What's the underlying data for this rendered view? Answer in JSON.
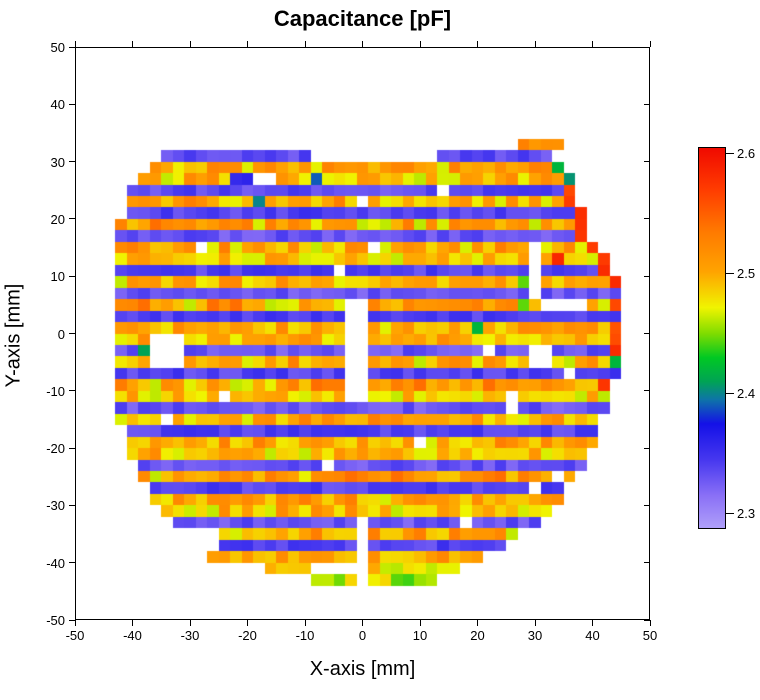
{
  "title": "Capacitance [pF]",
  "axes": {
    "x_label": "X-axis [mm]",
    "y_label": "Y-axis [mm]",
    "x_range": [
      -50,
      50
    ],
    "y_range": [
      -50,
      50
    ],
    "x_ticks": [
      -50,
      -40,
      -30,
      -20,
      -10,
      0,
      10,
      20,
      30,
      40,
      50
    ],
    "y_ticks": [
      -50,
      -40,
      -30,
      -20,
      -10,
      0,
      10,
      20,
      30,
      40,
      50
    ]
  },
  "colorbar": {
    "min": 2.288,
    "max": 2.605,
    "ticks": [
      {
        "value": 2.6,
        "label": "2.6"
      },
      {
        "value": 2.5,
        "label": "2.5"
      },
      {
        "value": 2.4,
        "label": "2.4"
      },
      {
        "value": 2.3,
        "label": "2.3"
      }
    ]
  },
  "chart_data": {
    "type": "heatmap",
    "title": "Capacitance [pF]",
    "xlabel": "X-axis [mm]",
    "ylabel": "Y-axis [mm]",
    "value_unit": "pF",
    "cell_size_mm": 2,
    "xlim": [
      -50,
      50
    ],
    "ylim": [
      -50,
      50
    ],
    "value_range": [
      2.288,
      2.605
    ],
    "legend_position": "right-colorbar",
    "grid": false,
    "colormap": {
      "stops": [
        [
          2.288,
          "#AF9FF9"
        ],
        [
          2.315,
          "#8A70F6"
        ],
        [
          2.345,
          "#4637EF"
        ],
        [
          2.375,
          "#1411E7"
        ],
        [
          2.395,
          "#0E74A8"
        ],
        [
          2.41,
          "#00A355"
        ],
        [
          2.43,
          "#00C823"
        ],
        [
          2.45,
          "#7EDC00"
        ],
        [
          2.472,
          "#F0F400"
        ],
        [
          2.502,
          "#FFA300"
        ],
        [
          2.535,
          "#FF7A00"
        ],
        [
          2.57,
          "#FF3C00"
        ],
        [
          2.605,
          "#F00A00"
        ]
      ]
    },
    "noise": {
      "seed": 1337,
      "orange_amp": 0.05,
      "blue_amp": 0.026,
      "yellow_flash_value": 2.468
    },
    "rows": [
      {
        "y": 33,
        "x0": 28,
        "x1": 34,
        "base": 2.52
      },
      {
        "y": 31,
        "x0": -34,
        "x1": 32,
        "base": 2.335
      },
      {
        "y": 29,
        "x0": -36,
        "x1": 34,
        "base": 2.51
      },
      {
        "y": 27,
        "x0": -38,
        "x1": 36,
        "base": 2.49
      },
      {
        "y": 25,
        "x0": -40,
        "x1": 36,
        "base": 2.335,
        "edge_red": true
      },
      {
        "y": 23,
        "x0": -40,
        "x1": 36,
        "base": 2.5,
        "edge_red": true
      },
      {
        "y": 21,
        "x0": -40,
        "x1": 38,
        "base": 2.34,
        "edge_red": true
      },
      {
        "y": 19,
        "x0": -42,
        "x1": 38,
        "base": 2.51,
        "edge_red": true
      },
      {
        "y": 17,
        "x0": -42,
        "x1": 38,
        "base": 2.33,
        "edge_red": true
      },
      {
        "y": 15,
        "x0": -42,
        "x1": 40,
        "base": 2.5,
        "edge_red": true
      },
      {
        "y": 13,
        "x0": -42,
        "x1": 42,
        "base": 2.49,
        "edge_red": true
      },
      {
        "y": 11,
        "x0": -42,
        "x1": 42,
        "base": 2.34,
        "edge_red": true
      },
      {
        "y": 9,
        "x0": -42,
        "x1": 44,
        "base": 2.5,
        "edge_red": true
      },
      {
        "y": 7,
        "x0": -42,
        "x1": 44,
        "base": 2.33
      },
      {
        "y": 5,
        "x0": -42,
        "x1": 44,
        "base": 2.51,
        "edge_red": true
      },
      {
        "y": 3,
        "x0": -42,
        "x1": 44,
        "base": 2.34
      },
      {
        "y": 1,
        "x0": -42,
        "x1": 44,
        "base": 2.5,
        "edge_red": true
      },
      {
        "y": -1,
        "x0": -42,
        "x1": 44,
        "base": 2.49,
        "edge_red": true
      },
      {
        "y": -3,
        "x0": -42,
        "x1": 44,
        "base": 2.33,
        "edge_red": true
      },
      {
        "y": -5,
        "x0": -42,
        "x1": 44,
        "base": 2.5
      },
      {
        "y": -7,
        "x0": -42,
        "x1": 44,
        "base": 2.34
      },
      {
        "y": -9,
        "x0": -42,
        "x1": 42,
        "base": 2.51,
        "edge_red": true
      },
      {
        "y": -11,
        "x0": -42,
        "x1": 42,
        "base": 2.49
      },
      {
        "y": -13,
        "x0": -42,
        "x1": 42,
        "base": 2.33
      },
      {
        "y": -15,
        "x0": -42,
        "x1": 40,
        "base": 2.5
      },
      {
        "y": -17,
        "x0": -40,
        "x1": 40,
        "base": 2.34
      },
      {
        "y": -19,
        "x0": -40,
        "x1": 40,
        "base": 2.5
      },
      {
        "y": -21,
        "x0": -40,
        "x1": 38,
        "base": 2.49
      },
      {
        "y": -23,
        "x0": -38,
        "x1": 38,
        "base": 2.33
      },
      {
        "y": -25,
        "x0": -38,
        "x1": 36,
        "base": 2.51
      },
      {
        "y": -27,
        "x0": -36,
        "x1": 34,
        "base": 2.34
      },
      {
        "y": -29,
        "x0": -36,
        "x1": 34,
        "base": 2.5
      },
      {
        "y": -31,
        "x0": -34,
        "x1": 32,
        "base": 2.49
      },
      {
        "y": -33,
        "x0": -32,
        "x1": 30,
        "base": 2.33
      },
      {
        "y": -35,
        "x0": -30,
        "x1": 26,
        "base": 2.5
      },
      {
        "y": -37,
        "x0": -28,
        "x1": 24,
        "base": 2.34
      },
      {
        "y": -39,
        "x0": -26,
        "x1": 20,
        "base": 2.5
      },
      {
        "y": -41,
        "x0": -16,
        "x1": 16,
        "base": 2.48
      },
      {
        "y": -43,
        "x0": -8,
        "x1": 12,
        "base": 2.46
      }
    ],
    "gaps": [
      {
        "x0": -9.5,
        "x1": 13,
        "y0": 30,
        "y1": 32
      },
      {
        "x0": -37,
        "x1": -31,
        "y0": -6,
        "y1": 0
      },
      {
        "x0": -2.5,
        "x1": 1.5,
        "y0": -11,
        "y1": 5
      },
      {
        "x0": -1.5,
        "x1": 1.5,
        "y0": -44,
        "y1": -32
      },
      {
        "x0": 29,
        "x1": 33,
        "y0": -6,
        "y1": -2
      },
      {
        "x0": 29,
        "x1": 31.5,
        "y0": 6,
        "y1": 16
      },
      {
        "x0": 31,
        "x1": 39,
        "y0": 4,
        "y1": 6
      },
      {
        "x0": 25,
        "x1": 27.5,
        "y0": -14.5,
        "y1": -11
      },
      {
        "x0": -9,
        "x1": -1,
        "y0": -42,
        "y1": -40
      },
      {
        "x0": -31,
        "x1": -26,
        "y0": -38,
        "y1": -34
      }
    ],
    "missing_cells": [
      [
        -18,
        27
      ],
      [
        -16,
        27
      ],
      [
        14,
        25
      ],
      [
        0,
        23
      ],
      [
        2,
        15
      ],
      [
        -4,
        11
      ],
      [
        -28,
        15
      ],
      [
        22,
        -3
      ],
      [
        36,
        -7
      ],
      [
        -24,
        -11
      ],
      [
        -34,
        -15
      ],
      [
        10,
        -19
      ],
      [
        -6,
        -23
      ],
      [
        34,
        -25
      ],
      [
        30,
        -27
      ],
      [
        18,
        -33
      ]
    ],
    "anomalies": [
      {
        "x": -8,
        "y": 27,
        "value": 2.39
      },
      {
        "x": -22,
        "y": 27,
        "value": 2.355
      },
      {
        "x": -20,
        "y": 27,
        "value": 2.36
      },
      {
        "x": 34,
        "y": 29,
        "value": 2.42
      },
      {
        "x": 36,
        "y": 27,
        "value": 2.405
      },
      {
        "x": -18,
        "y": 23,
        "value": 2.4
      },
      {
        "x": 36,
        "y": 23,
        "value": 2.57
      },
      {
        "x": 38,
        "y": 21,
        "value": 2.58
      },
      {
        "x": 34,
        "y": 13,
        "value": 2.585
      },
      {
        "x": 30,
        "y": 13,
        "value": 2.36
      },
      {
        "x": 28,
        "y": 9,
        "value": 2.445
      },
      {
        "x": 28,
        "y": 5,
        "value": 2.445
      },
      {
        "x": 20,
        "y": 1,
        "value": 2.42
      },
      {
        "x": 44,
        "y": -5,
        "value": 2.42
      },
      {
        "x": -38,
        "y": -3,
        "value": 2.41
      },
      {
        "x": 8,
        "y": -43,
        "value": 2.44
      }
    ]
  }
}
